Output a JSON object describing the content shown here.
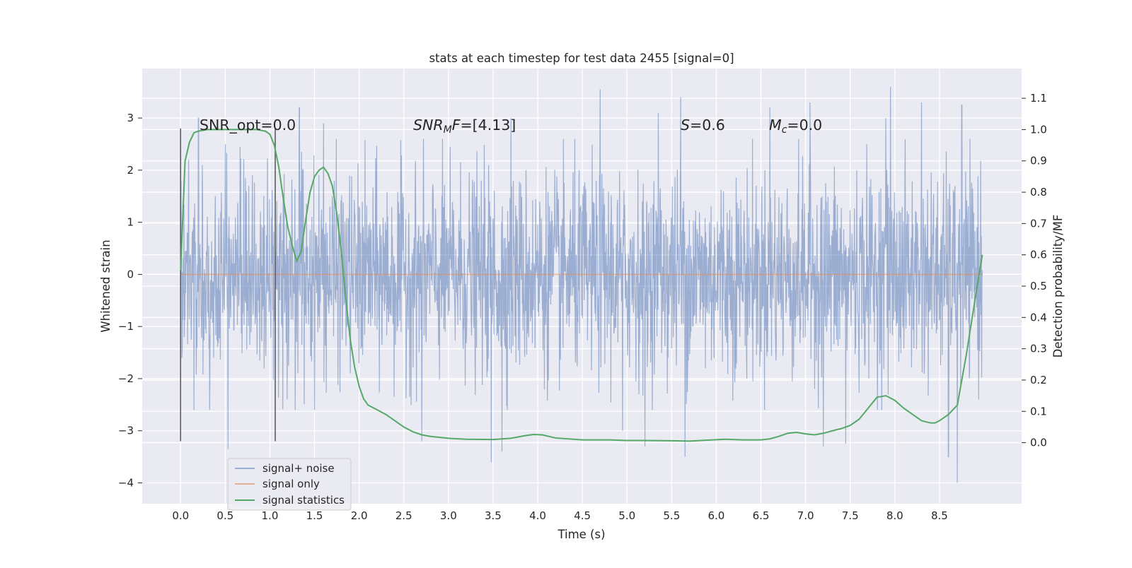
{
  "chart_data": {
    "type": "line",
    "title": "stats at each timestep for test data 2455 [signal=0]",
    "xlabel": "Time (s)",
    "ylabel": "Whitened strain",
    "y2label": "Detection probability/MF",
    "xlim": [
      -0.43,
      9.42
    ],
    "ylim": [
      -4.4,
      3.95
    ],
    "y2lim": [
      -0.195,
      1.195
    ],
    "xticks": [
      "0.0",
      "0.5",
      "1.0",
      "1.5",
      "2.0",
      "2.5",
      "3.0",
      "3.5",
      "4.0",
      "4.5",
      "5.0",
      "5.5",
      "6.0",
      "6.5",
      "7.0",
      "7.5",
      "8.0",
      "8.5"
    ],
    "yticks": [
      "3",
      "2",
      "1",
      "0",
      "−1",
      "−2",
      "−3",
      "−4"
    ],
    "y2ticks": [
      "1.1",
      "1.0",
      "0.9",
      "0.8",
      "0.7",
      "0.6",
      "0.5",
      "0.4",
      "0.3",
      "0.2",
      "0.1",
      "0.0"
    ],
    "grid": true,
    "legend_position": "lower-left",
    "annotations": [
      {
        "text": "SNR_opt=0.0",
        "x": 0.2,
        "y": 2.8
      },
      {
        "text": "SNR_MF=[4.13]",
        "x": 2.6,
        "y": 2.8
      },
      {
        "text": "S=0.6",
        "x": 5.6,
        "y": 2.8
      },
      {
        "text": "M_c=0.0",
        "x": 6.6,
        "y": 2.8
      }
    ],
    "vertical_markers": [
      {
        "x": 0.0,
        "y_top": 2.8,
        "y_bottom": -3.2
      },
      {
        "x": 1.06,
        "y_top": 2.8,
        "y_bottom": -3.2
      }
    ],
    "series": [
      {
        "name": "signal+ noise",
        "color": "#4c72b0",
        "axis": "left",
        "x_range": [
          0.0,
          8.98
        ],
        "typical_std": 0.95,
        "envelope": "dense high-frequency noise, mostly within ±2.5",
        "notable_peaks": [
          {
            "x": 0.2,
            "y": 3.0
          },
          {
            "x": 0.5,
            "y": 2.5
          },
          {
            "x": 1.33,
            "y": 3.2
          },
          {
            "x": 1.6,
            "y": 2.9
          },
          {
            "x": 3.7,
            "y": 3.0
          },
          {
            "x": 4.7,
            "y": 3.55
          },
          {
            "x": 5.35,
            "y": 3.1
          },
          {
            "x": 5.6,
            "y": 3.4
          },
          {
            "x": 6.6,
            "y": 3.2
          },
          {
            "x": 7.05,
            "y": 3.3
          },
          {
            "x": 7.9,
            "y": 3.0
          },
          {
            "x": 7.95,
            "y": 3.6
          },
          {
            "x": 8.3,
            "y": 3.3
          },
          {
            "x": 8.75,
            "y": 3.25
          }
        ],
        "notable_troughs": [
          {
            "x": 0.53,
            "y": -3.35
          },
          {
            "x": 2.7,
            "y": -3.2
          },
          {
            "x": 3.48,
            "y": -3.6
          },
          {
            "x": 3.6,
            "y": -3.4
          },
          {
            "x": 4.95,
            "y": -3.0
          },
          {
            "x": 5.2,
            "y": -3.3
          },
          {
            "x": 5.65,
            "y": -3.5
          },
          {
            "x": 7.2,
            "y": -3.3
          },
          {
            "x": 7.45,
            "y": -3.25
          },
          {
            "x": 8.6,
            "y": -3.5
          },
          {
            "x": 8.7,
            "y": -4.0
          }
        ]
      },
      {
        "name": "signal only",
        "color": "#dd8452",
        "axis": "left",
        "x": [
          0.0,
          8.98
        ],
        "y": [
          0.0,
          0.0
        ]
      },
      {
        "name": "signal statistics",
        "color": "#55a868",
        "axis": "right",
        "x": [
          0.0,
          0.05,
          0.1,
          0.15,
          0.2,
          0.3,
          0.5,
          0.7,
          0.85,
          0.95,
          1.0,
          1.05,
          1.1,
          1.15,
          1.2,
          1.25,
          1.3,
          1.35,
          1.4,
          1.45,
          1.5,
          1.55,
          1.6,
          1.65,
          1.7,
          1.75,
          1.8,
          1.85,
          1.9,
          1.95,
          2.0,
          2.05,
          2.1,
          2.2,
          2.3,
          2.4,
          2.5,
          2.6,
          2.7,
          2.8,
          3.0,
          3.2,
          3.5,
          3.7,
          3.85,
          3.95,
          4.05,
          4.2,
          4.5,
          4.8,
          5.0,
          5.2,
          5.5,
          5.7,
          5.9,
          6.1,
          6.3,
          6.5,
          6.6,
          6.7,
          6.8,
          6.9,
          7.0,
          7.1,
          7.2,
          7.3,
          7.4,
          7.5,
          7.6,
          7.7,
          7.8,
          7.9,
          8.0,
          8.1,
          8.2,
          8.3,
          8.4,
          8.45,
          8.5,
          8.6,
          8.7,
          8.8,
          8.9,
          8.98
        ],
        "y": [
          0.55,
          0.9,
          0.96,
          0.99,
          0.995,
          1.0,
          1.0,
          1.0,
          1.0,
          0.995,
          0.985,
          0.95,
          0.88,
          0.78,
          0.69,
          0.63,
          0.58,
          0.61,
          0.71,
          0.8,
          0.85,
          0.87,
          0.88,
          0.86,
          0.82,
          0.73,
          0.61,
          0.46,
          0.33,
          0.24,
          0.18,
          0.14,
          0.12,
          0.105,
          0.09,
          0.07,
          0.05,
          0.035,
          0.025,
          0.02,
          0.014,
          0.011,
          0.01,
          0.014,
          0.022,
          0.026,
          0.025,
          0.015,
          0.009,
          0.009,
          0.007,
          0.007,
          0.006,
          0.005,
          0.008,
          0.011,
          0.009,
          0.009,
          0.012,
          0.02,
          0.03,
          0.033,
          0.028,
          0.025,
          0.03,
          0.038,
          0.045,
          0.055,
          0.075,
          0.11,
          0.145,
          0.15,
          0.135,
          0.11,
          0.09,
          0.07,
          0.063,
          0.063,
          0.07,
          0.09,
          0.12,
          0.28,
          0.46,
          0.6
        ]
      }
    ]
  }
}
